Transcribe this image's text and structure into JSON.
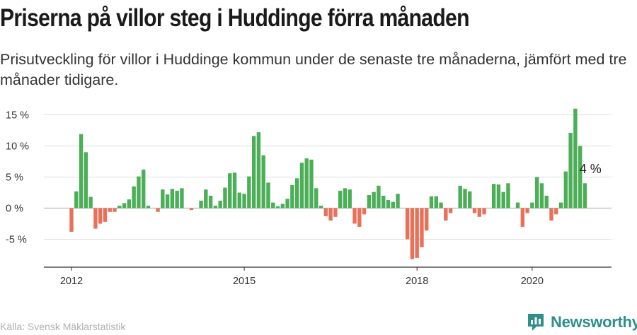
{
  "header": {
    "title": "Priserna på villor steg i Huddinge förra månaden",
    "subtitle": "Prisutveckling för villor i Huddinge kommun under de senaste tre månaderna, jämfört med tre månader tidigare."
  },
  "footer": {
    "source": "Källa: Svensk Mäklarstatistik",
    "brand": "Newsworthy"
  },
  "colors": {
    "positive": "#4cae57",
    "negative": "#e8715a",
    "grid": "#dddddd",
    "axis": "#333333",
    "brand": "#2f8f8a"
  },
  "chart_data": {
    "type": "bar",
    "y_unit": "%",
    "ylim": [
      -9,
      16
    ],
    "y_ticks": [
      15,
      10,
      5,
      0,
      -5
    ],
    "y_tick_labels": [
      "15 %",
      "10 %",
      "5 %",
      "0 %",
      "-5 %"
    ],
    "x_ticks": [
      "2012",
      "2015",
      "2018",
      "2020"
    ],
    "x_tick_index": [
      0,
      36,
      72,
      96
    ],
    "grid": true,
    "annotation": {
      "text": "4 %",
      "index": 108
    },
    "series": [
      {
        "start": "2012-01",
        "values": [
          -3.8,
          2.7,
          11.9,
          9.0,
          1.8,
          -3.3,
          -2.5,
          -2.2,
          -0.6,
          -0.6,
          0.4,
          0.8,
          1.4,
          3.5,
          5.1,
          6.2,
          0.4,
          0.0,
          -0.6,
          3.0,
          2.2,
          3.1,
          2.8,
          3.2,
          0.0,
          -0.3,
          0.0,
          1.2,
          3.0,
          2.0,
          0.4,
          1.2,
          3.3,
          5.6,
          5.7,
          2.5,
          2.3,
          5.1,
          11.6,
          12.2,
          8.5,
          4.1,
          0.9,
          0.3,
          0.7,
          1.5,
          3.7,
          4.8,
          7.3,
          8.0,
          7.8,
          3.2,
          0.4,
          -1.3,
          -2.0,
          -1.4,
          2.8,
          3.2,
          3.0,
          -2.5,
          -3.0,
          -1.0,
          2.1,
          2.6,
          3.6,
          2.0,
          1.3,
          1.0,
          2.3,
          0.0,
          -5.0,
          -8.2,
          -8.0,
          -6.3,
          -3.6,
          1.9,
          1.9,
          0.9,
          -2.0,
          -0.8,
          0.0,
          3.6,
          3.1,
          2.7,
          -0.8,
          -1.4,
          -1.0,
          0.0,
          3.9,
          3.8,
          2.6,
          4.0,
          0.0,
          0.9,
          -3.0,
          -0.8,
          0.9,
          5.0,
          4.0,
          2.0,
          -2.0,
          -1.0,
          0.9,
          5.9,
          12.1,
          16.0,
          10.0,
          4.0
        ]
      }
    ]
  }
}
